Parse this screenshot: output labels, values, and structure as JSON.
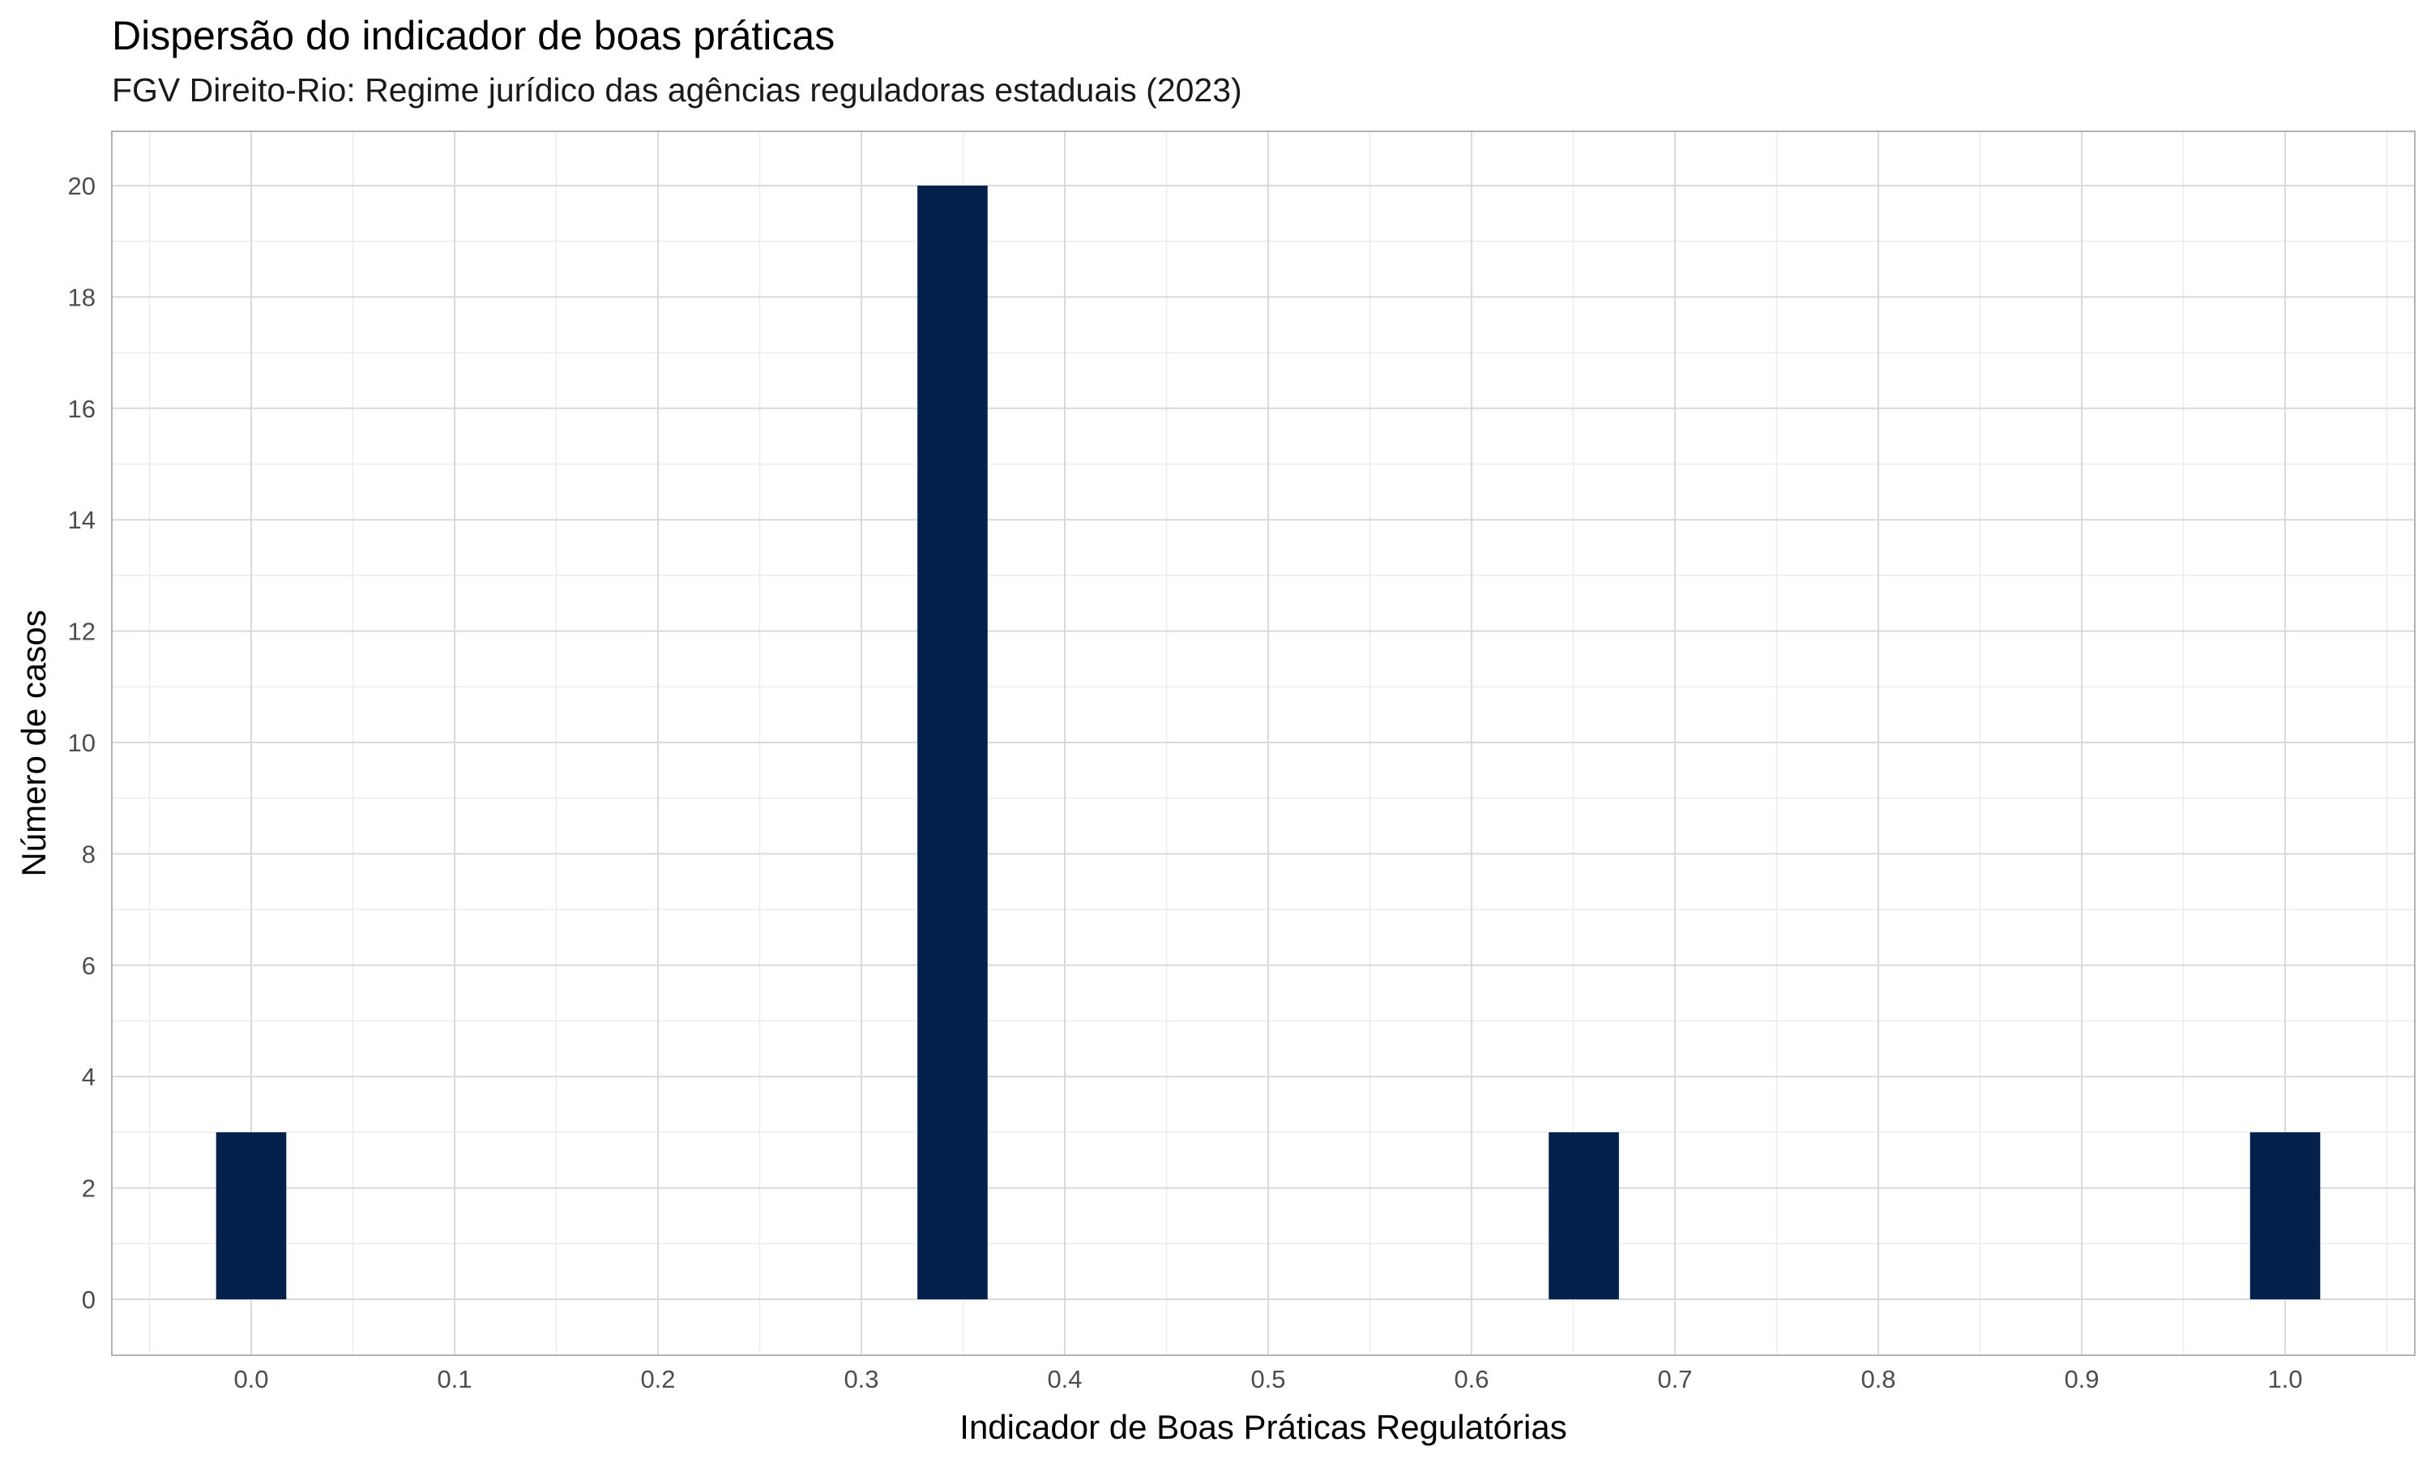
{
  "chart_data": {
    "type": "bar",
    "title": "Dispersão do indicador de boas práticas",
    "subtitle": "FGV Direito-Rio: Regime jurídico das agências reguladoras estaduais (2023)",
    "xlabel": "Indicador de Boas Práticas Regulatórias",
    "ylabel": "Número de casos",
    "x": [
      0.0,
      0.3448,
      0.6552,
      1.0
    ],
    "values": [
      3,
      20,
      3,
      3
    ],
    "bin_width": 0.0345,
    "xlim": [
      -0.069,
      1.069
    ],
    "ylim": [
      -1,
      21
    ],
    "x_ticks": [
      "0.0",
      "0.1",
      "0.2",
      "0.3",
      "0.4",
      "0.5",
      "0.6",
      "0.7",
      "0.8",
      "0.9",
      "1.0"
    ],
    "y_ticks": [
      "0",
      "2",
      "4",
      "6",
      "8",
      "10",
      "12",
      "14",
      "16",
      "18",
      "20"
    ],
    "grid": true,
    "bar_color": "#03214a",
    "grid_color": "#d9d9d9",
    "minor_grid_color": "#ececec",
    "panel_border_color": "#b3b3b3"
  }
}
